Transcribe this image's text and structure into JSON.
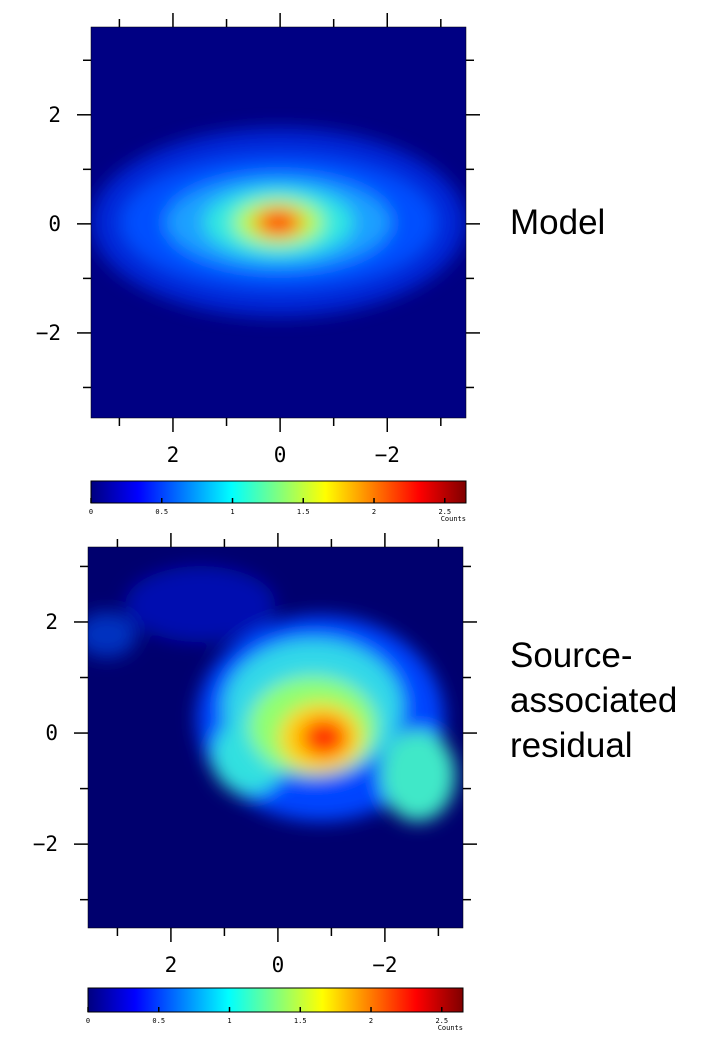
{
  "chart_data": [
    {
      "type": "heatmap",
      "label": [
        "Model"
      ],
      "colormap": "jet",
      "xlim": [
        3.53,
        -3.47
      ],
      "ylim": [
        -3.56,
        3.61
      ],
      "xticks": [
        2,
        0,
        {
          "value": -2,
          "label": "−2"
        }
      ],
      "yticks": [
        {
          "value": -2,
          "label": "−2"
        },
        0,
        2
      ],
      "xminorticks": [
        3,
        1,
        -1,
        -3
      ],
      "yminorticks": [
        -3,
        -1,
        1,
        3
      ],
      "colorbar": {
        "lim": [
          0,
          2.65
        ],
        "ticks": [
          0,
          0.5,
          1,
          1.5,
          2,
          2.5
        ],
        "label": "Counts"
      }
    },
    {
      "type": "heatmap",
      "label": [
        "Source-",
        "associated",
        "residual"
      ],
      "colormap": "jet",
      "xlim": [
        3.55,
        -3.46
      ],
      "ylim": [
        -3.51,
        3.35
      ],
      "xticks": [
        2,
        0,
        {
          "value": -2,
          "label": "−2"
        }
      ],
      "yticks": [
        {
          "value": -2,
          "label": "−2"
        },
        0,
        2
      ],
      "xminorticks": [
        3,
        1,
        -1,
        -3
      ],
      "yminorticks": [
        -3,
        -1,
        1,
        3
      ],
      "colorbar": {
        "lim": [
          0,
          2.65
        ],
        "ticks": [
          0,
          0.5,
          1,
          1.5,
          2,
          2.5
        ],
        "label": "Counts"
      }
    }
  ]
}
